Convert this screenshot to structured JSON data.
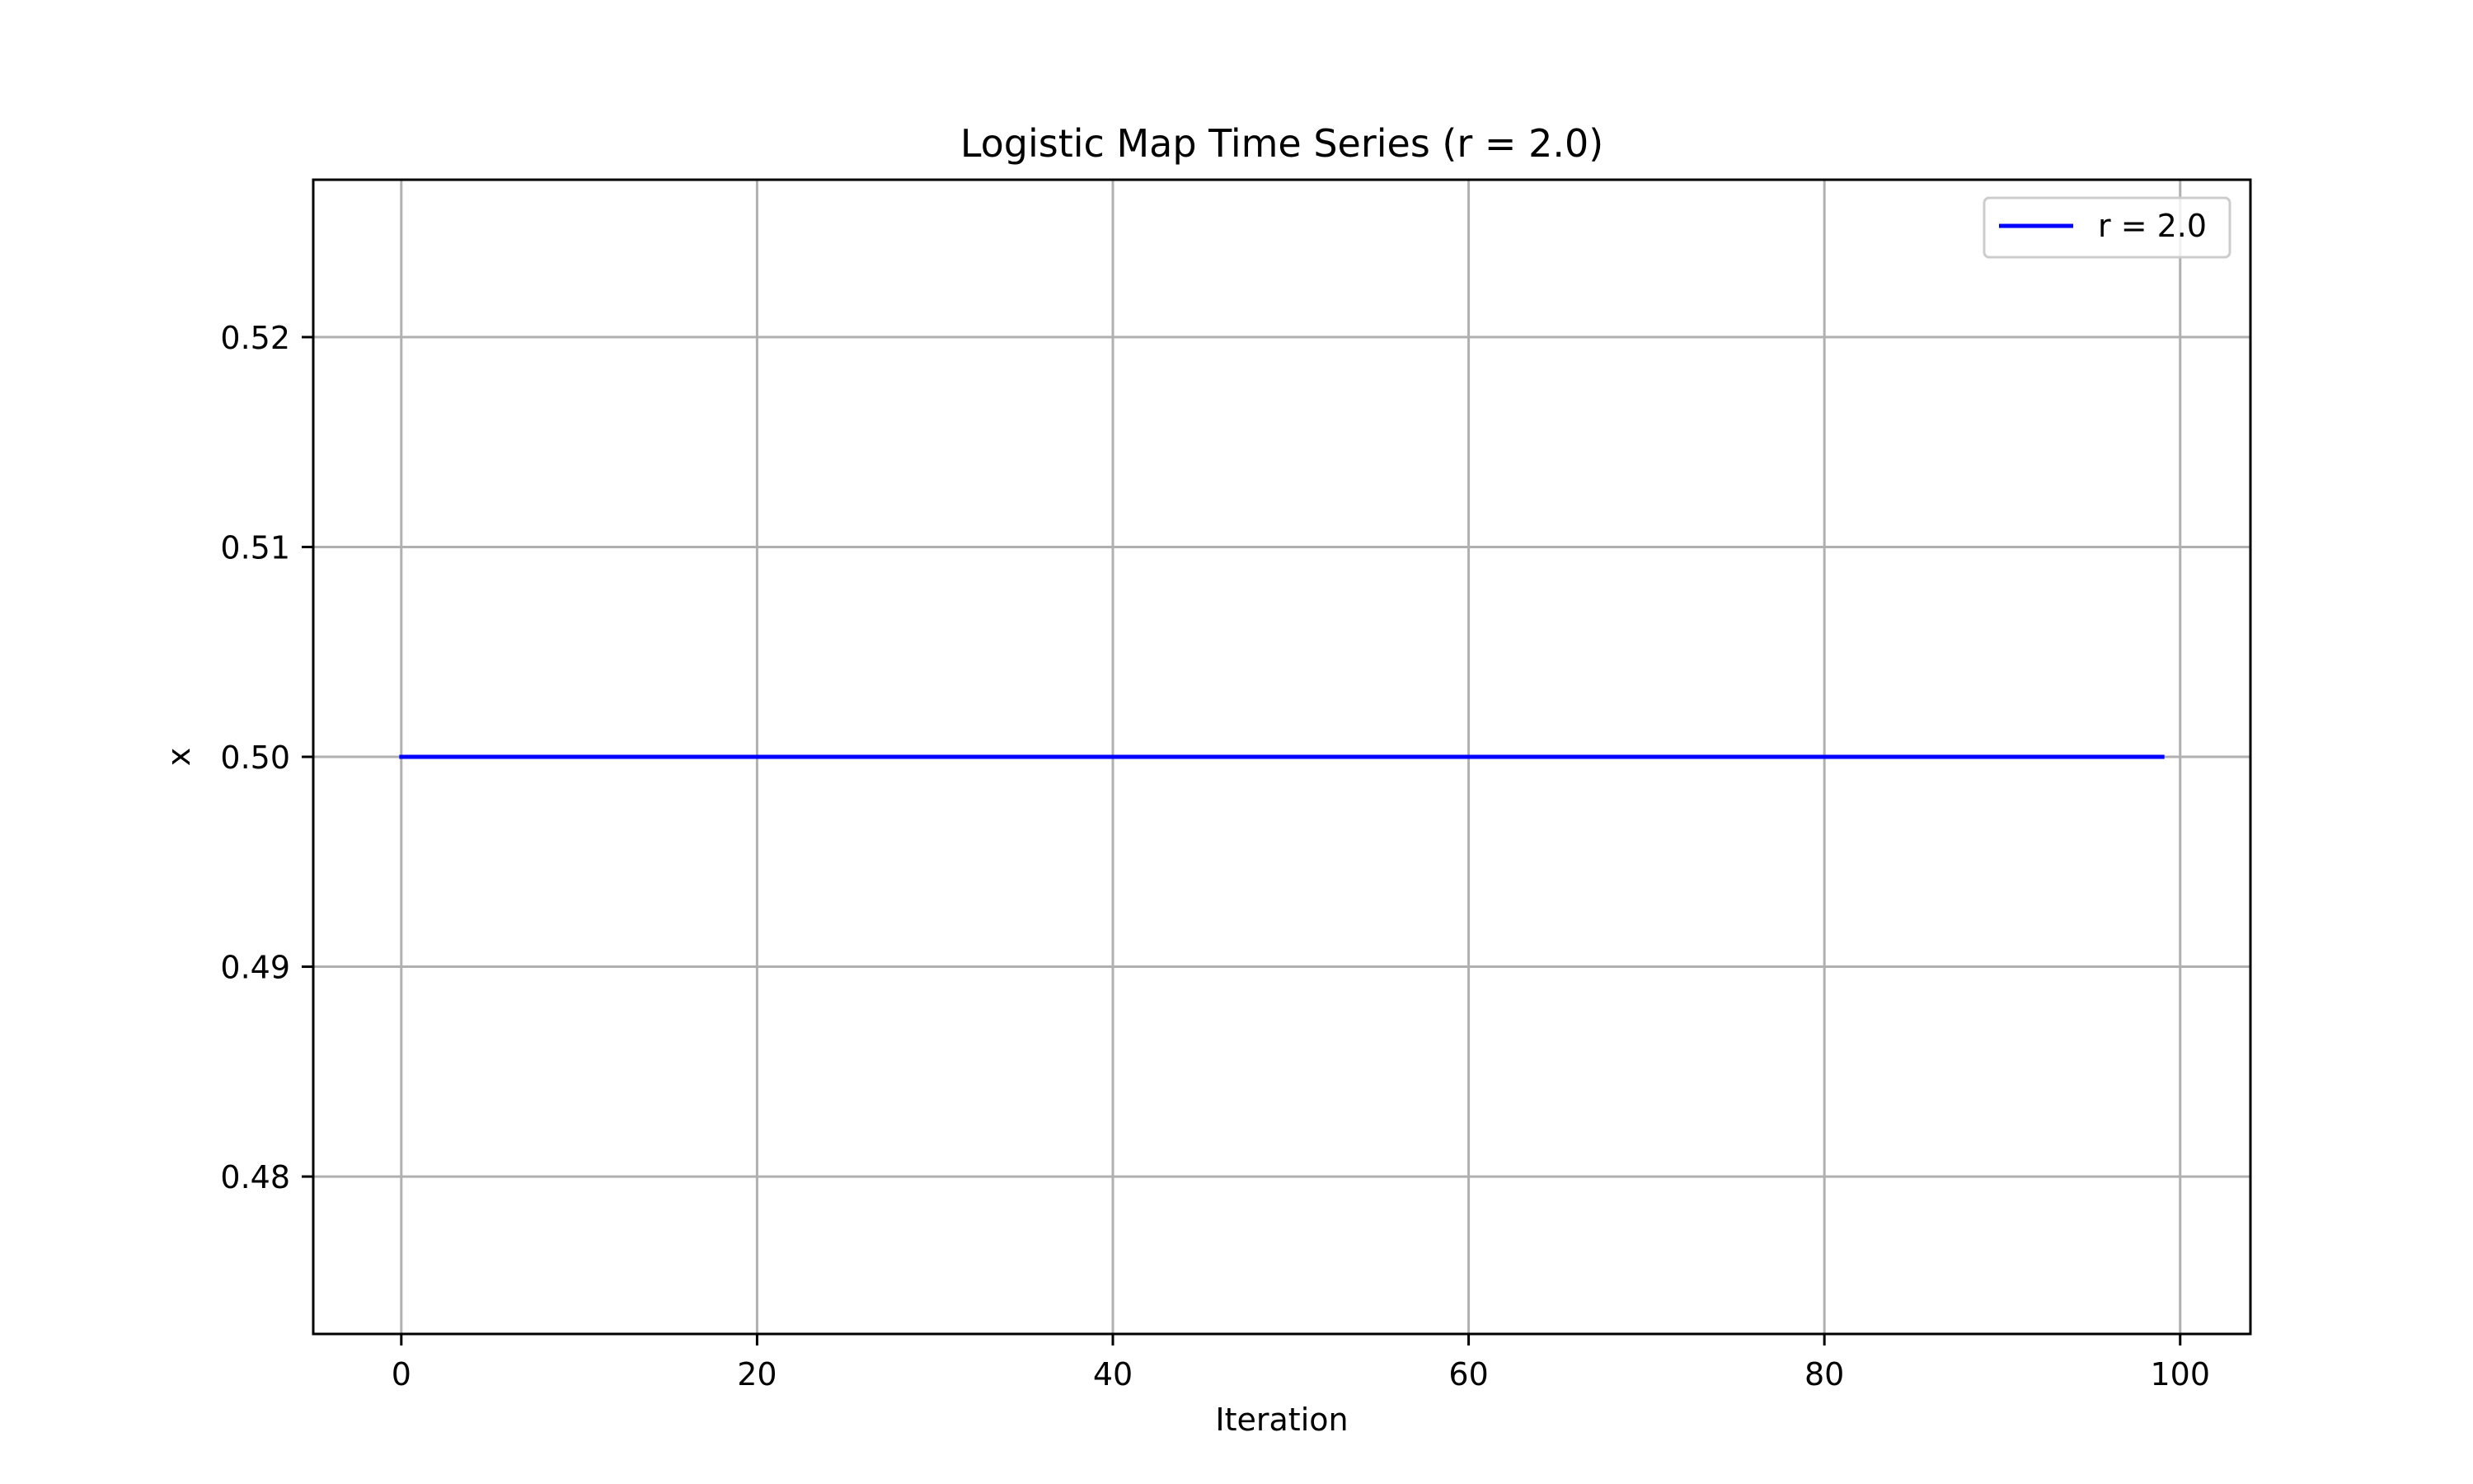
{
  "chart_data": {
    "type": "line",
    "title": "Logistic Map Time Series (r = 2.0)",
    "xlabel": "Iteration",
    "ylabel": "x",
    "xlim": [
      -4.95,
      103.95
    ],
    "ylim": [
      0.4725,
      0.5275
    ],
    "xticks": [
      0,
      20,
      40,
      60,
      80,
      100
    ],
    "yticks": [
      0.48,
      0.49,
      0.5,
      0.51,
      0.52
    ],
    "xtick_labels": [
      "0",
      "20",
      "40",
      "60",
      "80",
      "100"
    ],
    "ytick_labels": [
      "0.48",
      "0.49",
      "0.50",
      "0.51",
      "0.52"
    ],
    "grid": true,
    "legend_position": "top-right",
    "series": [
      {
        "name": "r = 2.0",
        "color": "#0000ff",
        "x": [
          0,
          99
        ],
        "y": [
          0.5,
          0.5
        ]
      }
    ]
  }
}
